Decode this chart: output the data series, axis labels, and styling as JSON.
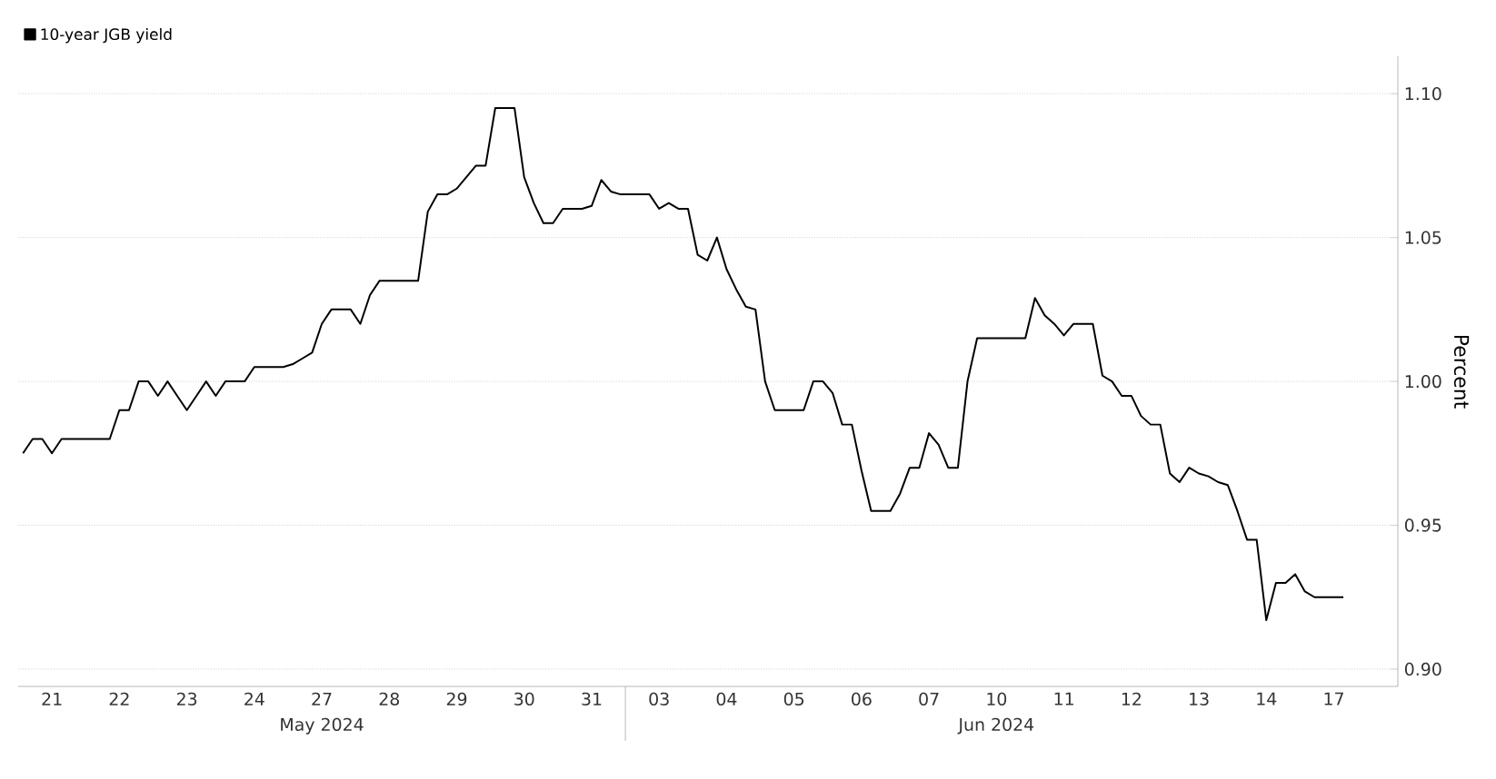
{
  "chart_data": {
    "type": "line",
    "ylabel": "Percent",
    "legend": "top left",
    "grid": "y",
    "ylim": [
      0.894,
      1.113
    ],
    "categories": [
      null,
      null,
      null,
      "21",
      null,
      null,
      null,
      null,
      null,
      null,
      "22",
      null,
      null,
      null,
      null,
      null,
      null,
      "23",
      null,
      null,
      null,
      null,
      null,
      null,
      "24",
      null,
      null,
      null,
      null,
      null,
      null,
      "27",
      null,
      null,
      null,
      null,
      null,
      null,
      "28",
      null,
      null,
      null,
      null,
      null,
      null,
      "29",
      null,
      null,
      null,
      null,
      null,
      null,
      "30",
      null,
      null,
      null,
      null,
      null,
      null,
      "31",
      null,
      null,
      null,
      null,
      null,
      null,
      "03",
      null,
      null,
      null,
      null,
      null,
      null,
      "04",
      null,
      null,
      null,
      null,
      null,
      null,
      "05",
      null,
      null,
      null,
      null,
      null,
      null,
      "06",
      null,
      null,
      null,
      null,
      null,
      null,
      "07",
      null,
      null,
      null,
      null,
      null,
      null,
      "10",
      null,
      null,
      null,
      null,
      null,
      null,
      "11",
      null,
      null,
      null,
      null,
      null,
      null,
      "12",
      null,
      null,
      null,
      null,
      null,
      null,
      "13",
      null,
      null,
      null,
      null,
      null,
      null,
      "14",
      null,
      null,
      null,
      null,
      null,
      null,
      "17",
      null,
      null,
      null
    ],
    "yticks": [
      {
        "value": 0.9,
        "label": "0.90"
      },
      {
        "value": 0.95,
        "label": "0.95"
      },
      {
        "value": 1.0,
        "label": "1.00"
      },
      {
        "value": 1.05,
        "label": "1.05"
      },
      {
        "value": 1.1,
        "label": "1.10"
      }
    ],
    "annotations": [
      "May 2024",
      "Jun 2024"
    ],
    "series": [
      {
        "name": "10-year JGB yield",
        "color": "#000000",
        "values": [
          0.975,
          0.98,
          0.98,
          0.975,
          0.98,
          0.98,
          0.98,
          0.98,
          0.98,
          0.98,
          0.99,
          0.99,
          1.0,
          1.0,
          0.995,
          1.0,
          0.995,
          0.99,
          0.995,
          1.0,
          0.995,
          1.0,
          1.0,
          1.0,
          1.005,
          1.005,
          1.005,
          1.005,
          1.006,
          1.008,
          1.01,
          1.02,
          1.025,
          1.025,
          1.025,
          1.02,
          1.03,
          1.035,
          1.035,
          1.035,
          1.035,
          1.035,
          1.059,
          1.065,
          1.065,
          1.067,
          1.071,
          1.075,
          1.075,
          1.095,
          1.095,
          1.095,
          1.071,
          1.062,
          1.055,
          1.055,
          1.06,
          1.06,
          1.06,
          1.061,
          1.07,
          1.066,
          1.065,
          1.065,
          1.065,
          1.065,
          1.06,
          1.062,
          1.06,
          1.06,
          1.044,
          1.042,
          1.05,
          1.039,
          1.032,
          1.026,
          1.025,
          1.0,
          0.99,
          0.99,
          0.99,
          0.99,
          1.0,
          1.0,
          0.996,
          0.985,
          0.985,
          0.969,
          0.955,
          0.955,
          0.955,
          0.961,
          0.97,
          0.97,
          0.982,
          0.978,
          0.97,
          0.97,
          1.0,
          1.015,
          1.015,
          1.015,
          1.015,
          1.015,
          1.015,
          1.029,
          1.023,
          1.02,
          1.016,
          1.02,
          1.02,
          1.02,
          1.002,
          1.0,
          0.995,
          0.995,
          0.988,
          0.985,
          0.985,
          0.968,
          0.965,
          0.97,
          0.968,
          0.967,
          0.965,
          0.964,
          0.955,
          0.945,
          0.945,
          0.917,
          0.93,
          0.93,
          0.933,
          0.927,
          0.925,
          0.925,
          0.925,
          0.925,
          null,
          null
        ]
      }
    ]
  }
}
